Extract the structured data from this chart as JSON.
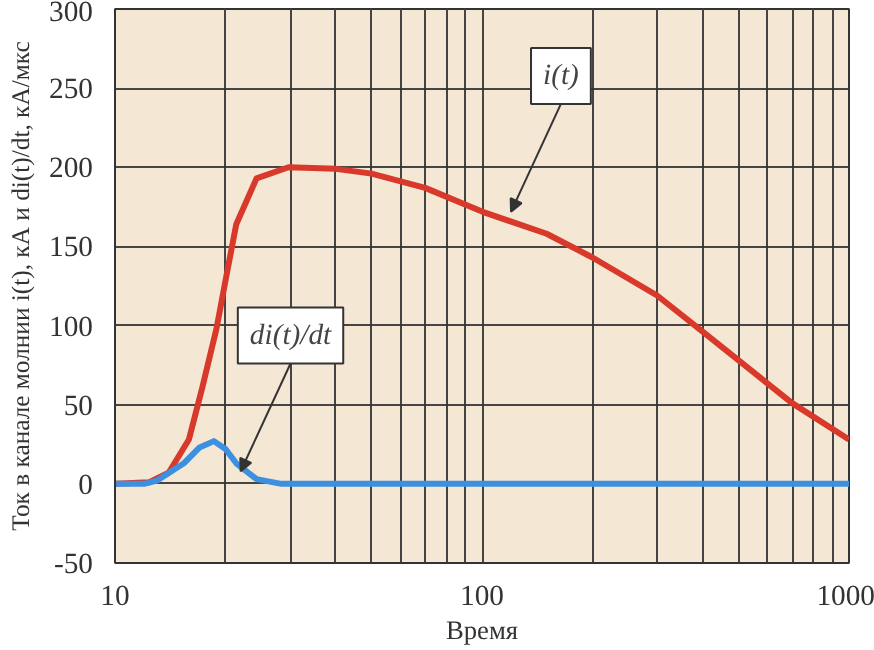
{
  "chart_data": {
    "type": "line",
    "xlabel": "Время",
    "ylabel": "Ток в канале молнии i(t), кА и di(t)/dt, кА/мкс",
    "log": "x",
    "grid": true,
    "xlim": [
      10,
      1000
    ],
    "xticks": [
      10,
      100,
      1000
    ],
    "ylim": [
      -50,
      300
    ],
    "yticks": [
      -50,
      0,
      50,
      100,
      150,
      200,
      250,
      300
    ],
    "series": [
      {
        "color": "#d8392b",
        "x": [
          10,
          12.4,
          14,
          15.9,
          17.3,
          18.9,
          20.1,
          21.4,
          24.3,
          29.7,
          40,
          50,
          70,
          100,
          150,
          200,
          300,
          400,
          700,
          1000
        ],
        "values": [
          0,
          1,
          7,
          28,
          61,
          98,
          131,
          164,
          193,
          200,
          199,
          196,
          187,
          172,
          158,
          143,
          119,
          96,
          51,
          28
        ]
      },
      {
        "color": "#3d8fe0",
        "x": [
          10,
          12,
          13,
          15.4,
          17,
          18.6,
          20,
          21.4,
          24.3,
          28.4,
          40,
          100,
          1000
        ],
        "values": [
          0,
          0,
          2,
          13,
          23,
          27,
          22,
          13,
          3,
          0,
          0,
          0,
          0
        ]
      }
    ],
    "annotations": [
      {
        "text": "i(t)",
        "x": 120,
        "y": 172
      },
      {
        "text": "di(t)/dt",
        "x": 22,
        "y": 8
      }
    ]
  }
}
